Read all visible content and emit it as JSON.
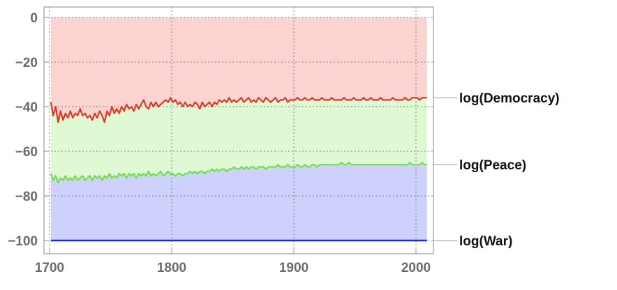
{
  "chart_data": {
    "type": "area",
    "title": "",
    "xlabel": "",
    "ylabel": "",
    "xlim": [
      1700,
      2010
    ],
    "ylim": [
      -100,
      0
    ],
    "x_ticks": [
      1700,
      1800,
      1900,
      2000
    ],
    "x_tick_labels": [
      "1700",
      "1800",
      "1900",
      "2000"
    ],
    "y_ticks": [
      0,
      -20,
      -40,
      -60,
      -80,
      -100
    ],
    "y_tick_labels": [
      "0",
      "−20",
      "−40",
      "−60",
      "−80",
      "−100"
    ],
    "grid": true,
    "legend": "direct labels at right end of each series",
    "fill_colors": {
      "above_democracy": "#fbd3d1",
      "democracy_to_peace": "#def9d3",
      "peace_to_war": "#cdd1fb"
    },
    "series": [
      {
        "name": "log(Democracy)",
        "label": "log(Democracy)",
        "color": "#d93a26",
        "points": [
          [
            1701,
            -38
          ],
          [
            1703,
            -44
          ],
          [
            1705,
            -40
          ],
          [
            1707,
            -47
          ],
          [
            1709,
            -42
          ],
          [
            1711,
            -46
          ],
          [
            1713,
            -43
          ],
          [
            1715,
            -45
          ],
          [
            1717,
            -42
          ],
          [
            1719,
            -45
          ],
          [
            1721,
            -43
          ],
          [
            1723,
            -44
          ],
          [
            1725,
            -41
          ],
          [
            1727,
            -44
          ],
          [
            1729,
            -43
          ],
          [
            1731,
            -45
          ],
          [
            1733,
            -44
          ],
          [
            1735,
            -46
          ],
          [
            1737,
            -43
          ],
          [
            1739,
            -45
          ],
          [
            1741,
            -42
          ],
          [
            1743,
            -44
          ],
          [
            1745,
            -47
          ],
          [
            1747,
            -42
          ],
          [
            1749,
            -44
          ],
          [
            1751,
            -40
          ],
          [
            1753,
            -43
          ],
          [
            1755,
            -41
          ],
          [
            1757,
            -43
          ],
          [
            1759,
            -40
          ],
          [
            1761,
            -42
          ],
          [
            1763,
            -39
          ],
          [
            1765,
            -41
          ],
          [
            1767,
            -40
          ],
          [
            1769,
            -42
          ],
          [
            1771,
            -39
          ],
          [
            1773,
            -41
          ],
          [
            1775,
            -39
          ],
          [
            1777,
            -37
          ],
          [
            1779,
            -40
          ],
          [
            1781,
            -41
          ],
          [
            1783,
            -38
          ],
          [
            1785,
            -40
          ],
          [
            1787,
            -38
          ],
          [
            1789,
            -40
          ],
          [
            1791,
            -39
          ],
          [
            1793,
            -38
          ],
          [
            1795,
            -37
          ],
          [
            1797,
            -38
          ],
          [
            1799,
            -36
          ],
          [
            1801,
            -38
          ],
          [
            1803,
            -37
          ],
          [
            1805,
            -39
          ],
          [
            1807,
            -38
          ],
          [
            1809,
            -40
          ],
          [
            1811,
            -38
          ],
          [
            1813,
            -40
          ],
          [
            1815,
            -39
          ],
          [
            1817,
            -40
          ],
          [
            1819,
            -38
          ],
          [
            1821,
            -39
          ],
          [
            1823,
            -41
          ],
          [
            1825,
            -38
          ],
          [
            1827,
            -40
          ],
          [
            1829,
            -39
          ],
          [
            1831,
            -38
          ],
          [
            1833,
            -40
          ],
          [
            1835,
            -38
          ],
          [
            1837,
            -39
          ],
          [
            1839,
            -37
          ],
          [
            1841,
            -38
          ],
          [
            1843,
            -37
          ],
          [
            1845,
            -38
          ],
          [
            1847,
            -36
          ],
          [
            1849,
            -38
          ],
          [
            1851,
            -37
          ],
          [
            1853,
            -38
          ],
          [
            1855,
            -37
          ],
          [
            1857,
            -36
          ],
          [
            1859,
            -38
          ],
          [
            1861,
            -37
          ],
          [
            1863,
            -36
          ],
          [
            1865,
            -38
          ],
          [
            1867,
            -37
          ],
          [
            1869,
            -38
          ],
          [
            1871,
            -36
          ],
          [
            1873,
            -37
          ],
          [
            1875,
            -38
          ],
          [
            1877,
            -36
          ],
          [
            1879,
            -37
          ],
          [
            1881,
            -38
          ],
          [
            1883,
            -37
          ],
          [
            1885,
            -36
          ],
          [
            1887,
            -38
          ],
          [
            1889,
            -37
          ],
          [
            1891,
            -37
          ],
          [
            1893,
            -36
          ],
          [
            1895,
            -38
          ],
          [
            1897,
            -37
          ],
          [
            1899,
            -37
          ],
          [
            1901,
            -37
          ],
          [
            1903,
            -36
          ],
          [
            1905,
            -37
          ],
          [
            1907,
            -37
          ],
          [
            1909,
            -36
          ],
          [
            1911,
            -37
          ],
          [
            1913,
            -37
          ],
          [
            1915,
            -36
          ],
          [
            1917,
            -37
          ],
          [
            1919,
            -37
          ],
          [
            1921,
            -37
          ],
          [
            1923,
            -36
          ],
          [
            1925,
            -37
          ],
          [
            1927,
            -37
          ],
          [
            1929,
            -37
          ],
          [
            1931,
            -36
          ],
          [
            1933,
            -37
          ],
          [
            1935,
            -37
          ],
          [
            1937,
            -37
          ],
          [
            1939,
            -37
          ],
          [
            1941,
            -36
          ],
          [
            1943,
            -37
          ],
          [
            1945,
            -37
          ],
          [
            1947,
            -37
          ],
          [
            1949,
            -36
          ],
          [
            1951,
            -37
          ],
          [
            1953,
            -37
          ],
          [
            1955,
            -37
          ],
          [
            1957,
            -36
          ],
          [
            1959,
            -37
          ],
          [
            1961,
            -37
          ],
          [
            1963,
            -36
          ],
          [
            1965,
            -37
          ],
          [
            1967,
            -37
          ],
          [
            1969,
            -37
          ],
          [
            1971,
            -36
          ],
          [
            1973,
            -37
          ],
          [
            1975,
            -37
          ],
          [
            1977,
            -37
          ],
          [
            1979,
            -37
          ],
          [
            1981,
            -36
          ],
          [
            1983,
            -37
          ],
          [
            1985,
            -37
          ],
          [
            1987,
            -37
          ],
          [
            1989,
            -37
          ],
          [
            1991,
            -36
          ],
          [
            1993,
            -37
          ],
          [
            1995,
            -37
          ],
          [
            1997,
            -36
          ],
          [
            1999,
            -36
          ],
          [
            2001,
            -36
          ],
          [
            2003,
            -37
          ],
          [
            2005,
            -36
          ],
          [
            2007,
            -36
          ],
          [
            2009,
            -36
          ]
        ]
      },
      {
        "name": "log(Peace)",
        "label": "log(Peace)",
        "color": "#6fe04a",
        "points": [
          [
            1701,
            -70
          ],
          [
            1703,
            -73
          ],
          [
            1705,
            -71
          ],
          [
            1707,
            -74
          ],
          [
            1709,
            -72
          ],
          [
            1711,
            -73
          ],
          [
            1713,
            -71
          ],
          [
            1715,
            -73
          ],
          [
            1717,
            -72
          ],
          [
            1719,
            -73
          ],
          [
            1721,
            -71
          ],
          [
            1723,
            -73
          ],
          [
            1725,
            -72
          ],
          [
            1727,
            -71
          ],
          [
            1729,
            -73
          ],
          [
            1731,
            -72
          ],
          [
            1733,
            -71
          ],
          [
            1735,
            -73
          ],
          [
            1737,
            -71
          ],
          [
            1739,
            -72
          ],
          [
            1741,
            -71
          ],
          [
            1743,
            -73
          ],
          [
            1745,
            -71
          ],
          [
            1747,
            -72
          ],
          [
            1749,
            -70
          ],
          [
            1751,
            -72
          ],
          [
            1753,
            -71
          ],
          [
            1755,
            -72
          ],
          [
            1757,
            -70
          ],
          [
            1759,
            -71
          ],
          [
            1761,
            -70
          ],
          [
            1763,
            -72
          ],
          [
            1765,
            -70
          ],
          [
            1767,
            -71
          ],
          [
            1769,
            -70
          ],
          [
            1771,
            -72
          ],
          [
            1773,
            -70
          ],
          [
            1775,
            -71
          ],
          [
            1777,
            -70
          ],
          [
            1779,
            -71
          ],
          [
            1781,
            -69
          ],
          [
            1783,
            -71
          ],
          [
            1785,
            -70
          ],
          [
            1787,
            -71
          ],
          [
            1789,
            -70
          ],
          [
            1791,
            -69
          ],
          [
            1793,
            -71
          ],
          [
            1795,
            -70
          ],
          [
            1797,
            -69
          ],
          [
            1799,
            -70
          ],
          [
            1801,
            -70
          ],
          [
            1803,
            -71
          ],
          [
            1805,
            -70
          ],
          [
            1807,
            -70
          ],
          [
            1809,
            -71
          ],
          [
            1811,
            -70
          ],
          [
            1813,
            -70
          ],
          [
            1815,
            -69
          ],
          [
            1817,
            -70
          ],
          [
            1819,
            -69
          ],
          [
            1821,
            -70
          ],
          [
            1823,
            -69
          ],
          [
            1825,
            -69
          ],
          [
            1827,
            -70
          ],
          [
            1829,
            -69
          ],
          [
            1831,
            -69
          ],
          [
            1833,
            -68
          ],
          [
            1835,
            -69
          ],
          [
            1837,
            -68
          ],
          [
            1839,
            -69
          ],
          [
            1841,
            -68
          ],
          [
            1843,
            -68
          ],
          [
            1845,
            -69
          ],
          [
            1847,
            -68
          ],
          [
            1849,
            -68
          ],
          [
            1851,
            -67
          ],
          [
            1853,
            -68
          ],
          [
            1855,
            -68
          ],
          [
            1857,
            -67
          ],
          [
            1859,
            -68
          ],
          [
            1861,
            -67
          ],
          [
            1863,
            -68
          ],
          [
            1865,
            -67
          ],
          [
            1867,
            -67
          ],
          [
            1869,
            -68
          ],
          [
            1871,
            -67
          ],
          [
            1873,
            -67
          ],
          [
            1875,
            -67
          ],
          [
            1877,
            -68
          ],
          [
            1879,
            -67
          ],
          [
            1881,
            -67
          ],
          [
            1883,
            -67
          ],
          [
            1885,
            -67
          ],
          [
            1887,
            -66
          ],
          [
            1889,
            -67
          ],
          [
            1891,
            -67
          ],
          [
            1893,
            -67
          ],
          [
            1895,
            -66
          ],
          [
            1897,
            -67
          ],
          [
            1899,
            -67
          ],
          [
            1901,
            -67
          ],
          [
            1903,
            -66
          ],
          [
            1905,
            -67
          ],
          [
            1907,
            -67
          ],
          [
            1909,
            -66
          ],
          [
            1911,
            -67
          ],
          [
            1913,
            -67
          ],
          [
            1915,
            -66
          ],
          [
            1917,
            -66
          ],
          [
            1919,
            -67
          ],
          [
            1921,
            -66
          ],
          [
            1923,
            -66
          ],
          [
            1925,
            -66
          ],
          [
            1927,
            -66
          ],
          [
            1929,
            -66
          ],
          [
            1931,
            -66
          ],
          [
            1933,
            -66
          ],
          [
            1935,
            -66
          ],
          [
            1937,
            -66
          ],
          [
            1939,
            -65
          ],
          [
            1941,
            -66
          ],
          [
            1943,
            -66
          ],
          [
            1945,
            -65
          ],
          [
            1947,
            -66
          ],
          [
            1949,
            -66
          ],
          [
            1951,
            -66
          ],
          [
            1953,
            -66
          ],
          [
            1955,
            -66
          ],
          [
            1957,
            -66
          ],
          [
            1959,
            -66
          ],
          [
            1961,
            -66
          ],
          [
            1963,
            -66
          ],
          [
            1965,
            -66
          ],
          [
            1967,
            -66
          ],
          [
            1969,
            -66
          ],
          [
            1971,
            -66
          ],
          [
            1973,
            -66
          ],
          [
            1975,
            -66
          ],
          [
            1977,
            -66
          ],
          [
            1979,
            -66
          ],
          [
            1981,
            -66
          ],
          [
            1983,
            -66
          ],
          [
            1985,
            -66
          ],
          [
            1987,
            -66
          ],
          [
            1989,
            -66
          ],
          [
            1991,
            -66
          ],
          [
            1993,
            -66
          ],
          [
            1995,
            -65
          ],
          [
            1997,
            -66
          ],
          [
            1999,
            -66
          ],
          [
            2001,
            -66
          ],
          [
            2003,
            -66
          ],
          [
            2005,
            -65
          ],
          [
            2007,
            -66
          ],
          [
            2009,
            -66
          ]
        ]
      },
      {
        "name": "log(War)",
        "label": "log(War)",
        "color": "#1a2bcc",
        "points": [
          [
            1701,
            -100
          ],
          [
            2009,
            -100
          ]
        ]
      }
    ]
  }
}
